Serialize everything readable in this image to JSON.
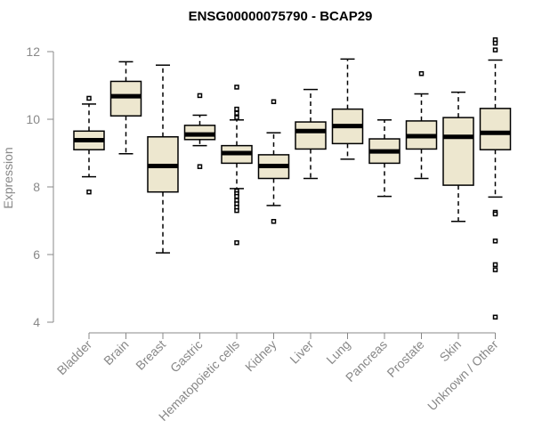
{
  "chart_data": {
    "type": "boxplot",
    "title": "ENSG00000075790 - BCAP29",
    "xlabel": "",
    "ylabel": "Expression",
    "ylim": [
      4,
      12.4
    ],
    "yticks": [
      4,
      6,
      8,
      10,
      12
    ],
    "grid": false,
    "colors": {
      "box_fill": "#ede7cf",
      "stroke": "#000000",
      "axis": "#888888"
    },
    "categories": [
      "Bladder",
      "Brain",
      "Breast",
      "Gastric",
      "Hematopoietic cells",
      "Kidney",
      "Liver",
      "Lung",
      "Pancreas",
      "Prostate",
      "Skin",
      "Unknown / Other"
    ],
    "boxes": [
      {
        "name": "Bladder",
        "whisker_low": 8.3,
        "q1": 9.1,
        "median": 9.38,
        "q3": 9.65,
        "whisker_high": 10.45,
        "outliers": [
          10.62,
          7.85
        ]
      },
      {
        "name": "Brain",
        "whisker_low": 8.98,
        "q1": 10.1,
        "median": 10.68,
        "q3": 11.12,
        "whisker_high": 11.7,
        "outliers": []
      },
      {
        "name": "Breast",
        "whisker_low": 6.05,
        "q1": 7.85,
        "median": 8.62,
        "q3": 9.48,
        "whisker_high": 11.6,
        "outliers": []
      },
      {
        "name": "Gastric",
        "whisker_low": 9.22,
        "q1": 9.4,
        "median": 9.55,
        "q3": 9.82,
        "whisker_high": 10.12,
        "outliers": [
          10.7,
          8.6
        ]
      },
      {
        "name": "Hematopoietic cells",
        "whisker_low": 7.95,
        "q1": 8.7,
        "median": 9.0,
        "q3": 9.22,
        "whisker_high": 9.98,
        "outliers": [
          10.95,
          10.3,
          10.18,
          10.05,
          7.88,
          7.8,
          7.72,
          7.6,
          7.5,
          7.4,
          7.3,
          6.35
        ]
      },
      {
        "name": "Kidney",
        "whisker_low": 7.45,
        "q1": 8.25,
        "median": 8.62,
        "q3": 8.95,
        "whisker_high": 9.6,
        "outliers": [
          10.52,
          6.98
        ]
      },
      {
        "name": "Liver",
        "whisker_low": 8.25,
        "q1": 9.12,
        "median": 9.65,
        "q3": 9.92,
        "whisker_high": 10.88,
        "outliers": []
      },
      {
        "name": "Lung",
        "whisker_low": 8.82,
        "q1": 9.28,
        "median": 9.8,
        "q3": 10.3,
        "whisker_high": 11.78,
        "outliers": []
      },
      {
        "name": "Pancreas",
        "whisker_low": 7.72,
        "q1": 8.7,
        "median": 9.05,
        "q3": 9.42,
        "whisker_high": 9.98,
        "outliers": []
      },
      {
        "name": "Prostate",
        "whisker_low": 8.25,
        "q1": 9.12,
        "median": 9.5,
        "q3": 9.95,
        "whisker_high": 10.75,
        "outliers": [
          11.35
        ]
      },
      {
        "name": "Skin",
        "whisker_low": 6.98,
        "q1": 8.05,
        "median": 9.48,
        "q3": 10.05,
        "whisker_high": 10.8,
        "outliers": []
      },
      {
        "name": "Unknown / Other",
        "whisker_low": 7.7,
        "q1": 9.1,
        "median": 9.6,
        "q3": 10.32,
        "whisker_high": 11.75,
        "outliers": [
          12.35,
          12.25,
          12.05,
          7.25,
          7.2,
          6.4,
          5.7,
          5.55,
          4.15
        ]
      }
    ]
  }
}
